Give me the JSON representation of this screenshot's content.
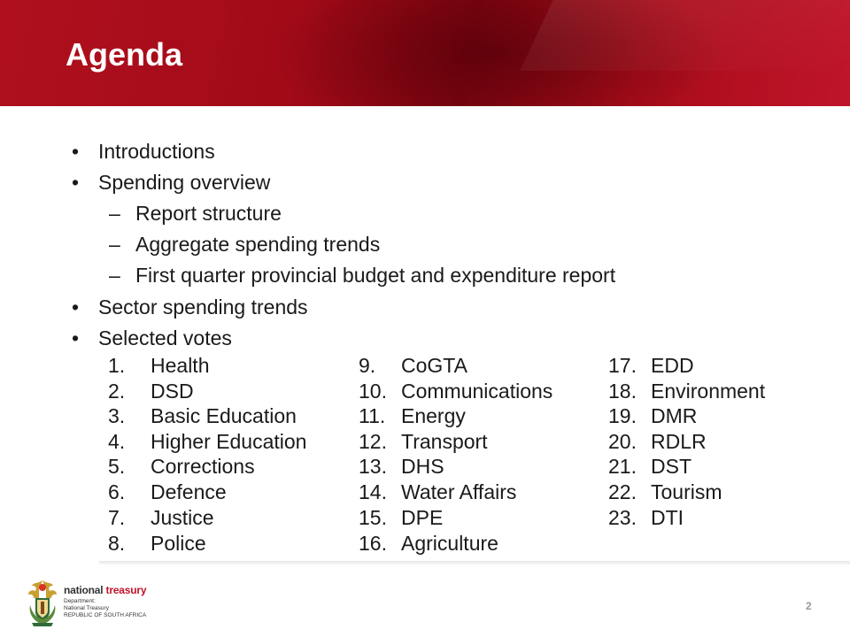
{
  "slide": {
    "title": "Agenda",
    "page_number": "2"
  },
  "agenda": {
    "items": [
      {
        "mark": "•",
        "text": "Introductions"
      },
      {
        "mark": "•",
        "text": "Spending overview"
      },
      {
        "mark": "–",
        "text": "Report structure"
      },
      {
        "mark": "–",
        "text": "Aggregate spending trends"
      },
      {
        "mark": "–",
        "text": "First quarter provincial budget and expenditure report"
      },
      {
        "mark": "•",
        "text": "Sector spending trends"
      },
      {
        "mark": "•",
        "text": "Selected votes"
      }
    ]
  },
  "votes": [
    {
      "num": "1.",
      "name": "Health"
    },
    {
      "num": "2.",
      "name": "DSD"
    },
    {
      "num": "3.",
      "name": "Basic Education"
    },
    {
      "num": "4.",
      "name": "Higher Education"
    },
    {
      "num": "5.",
      "name": "Corrections"
    },
    {
      "num": "6.",
      "name": "Defence"
    },
    {
      "num": "7.",
      "name": "Justice"
    },
    {
      "num": "8.",
      "name": "Police"
    },
    {
      "num": "9.",
      "name": "CoGTA"
    },
    {
      "num": "10.",
      "name": "Communications"
    },
    {
      "num": "11.",
      "name": "Energy"
    },
    {
      "num": "12.",
      "name": "Transport"
    },
    {
      "num": "13.",
      "name": "DHS"
    },
    {
      "num": "14.",
      "name": "Water Affairs"
    },
    {
      "num": "15.",
      "name": "DPE"
    },
    {
      "num": "16.",
      "name": "Agriculture"
    },
    {
      "num": "17.",
      "name": "EDD"
    },
    {
      "num": "18.",
      "name": "Environment"
    },
    {
      "num": "19.",
      "name": "DMR"
    },
    {
      "num": "20.",
      "name": "RDLR"
    },
    {
      "num": "21.",
      "name": "DST"
    },
    {
      "num": "22.",
      "name": "Tourism"
    },
    {
      "num": "23.",
      "name": "DTI"
    }
  ],
  "logo": {
    "name_part1": "national ",
    "name_part2": "treasury",
    "line1": "Department:",
    "line2": "National Treasury",
    "line3": "REPUBLIC OF SOUTH AFRICA"
  },
  "colors": {
    "header_red": "#a20a18",
    "accent": "#c0142a"
  }
}
